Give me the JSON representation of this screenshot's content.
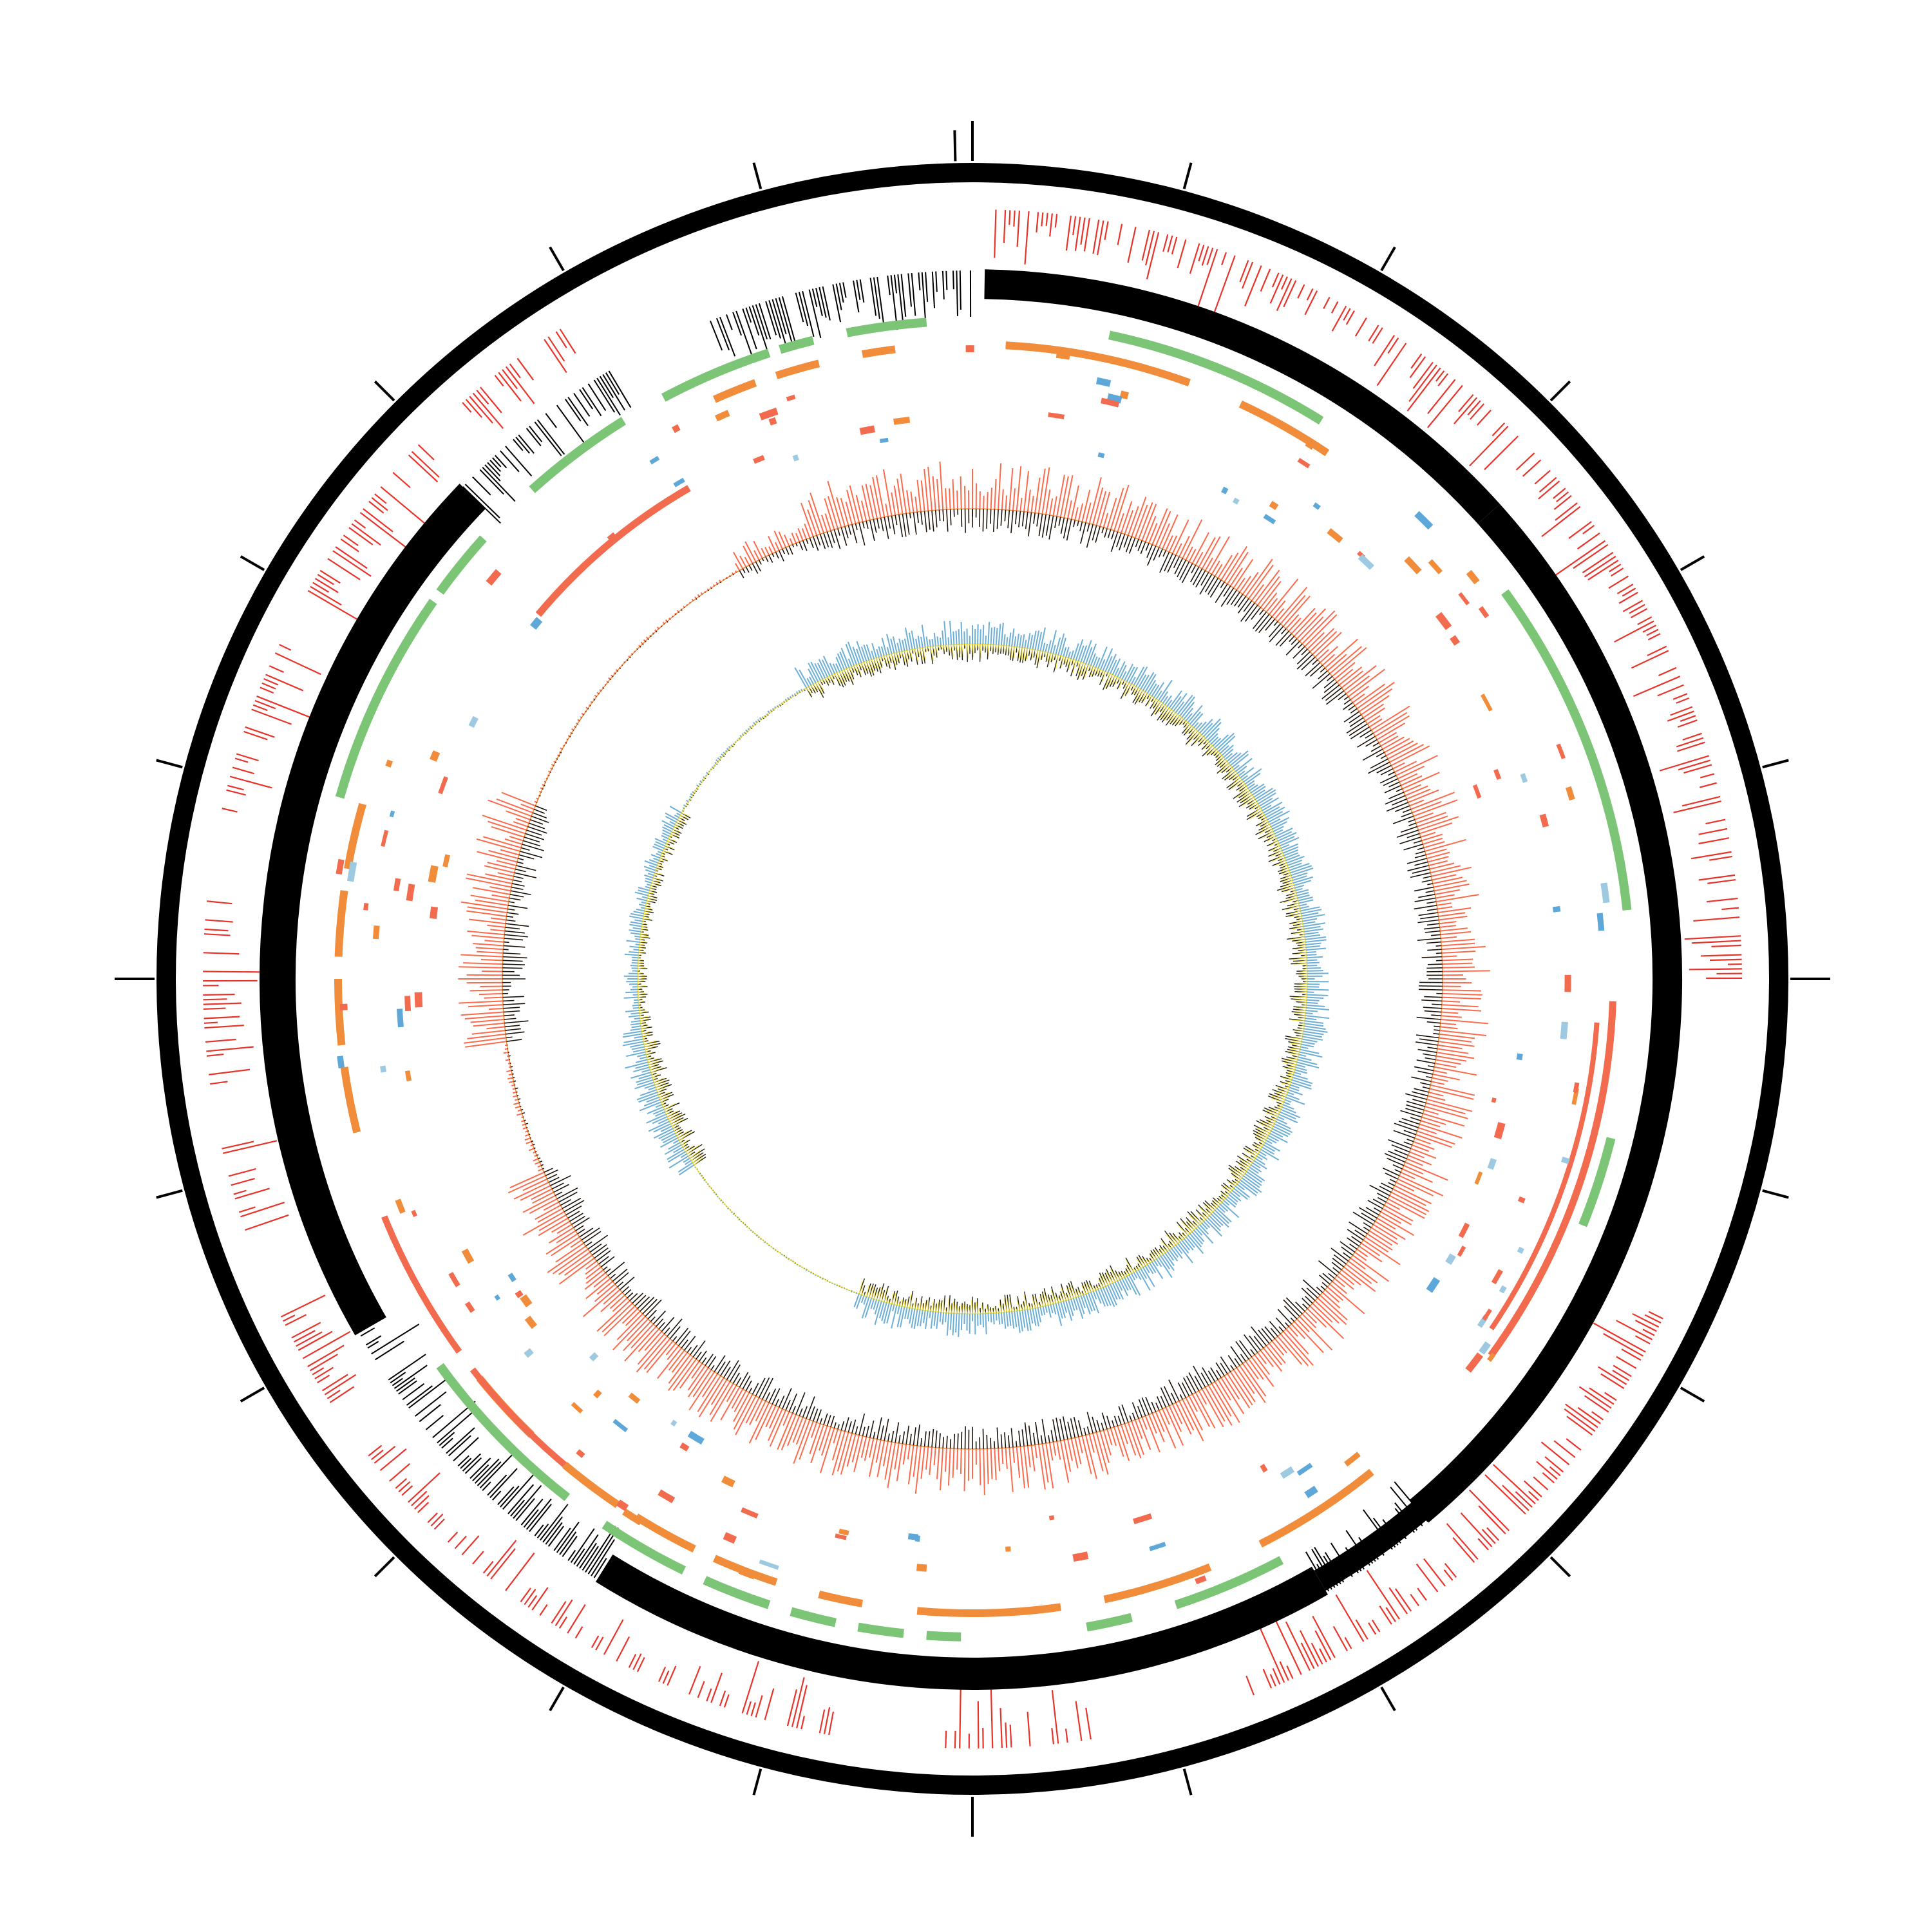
{
  "chart_data": {
    "type": "circular-genome-map",
    "title": "",
    "tick_count": 24,
    "colors": {
      "backbone": "#000000",
      "red_bars": "#e8332a",
      "green_arcs": "#7cc576",
      "orange_arcs": "#f08c3a",
      "salmon_arcs": "#f26b4e",
      "blue_marks": "#5da8d8",
      "lightblue_marks": "#9ecae1",
      "gc_skew_outer": "#fb6a4a",
      "gc_skew_inner": "#f0913a",
      "gc_content_outer": "#6baed6",
      "gc_content_inner": "#ffe84a"
    },
    "tracks": [
      {
        "name": "",
        "kind": "ticks"
      },
      {
        "name": "",
        "kind": "outer-ring"
      },
      {
        "name": "",
        "kind": "red-bars",
        "segments": [
          [
            1,
            90
          ],
          [
            116,
            160
          ],
          [
            170,
            182
          ],
          [
            190,
            232
          ],
          [
            236,
            244
          ],
          [
            250,
            258
          ],
          [
            262,
            276
          ],
          [
            282,
            296
          ],
          [
            300,
            314
          ],
          [
            318,
            328
          ]
        ]
      },
      {
        "name": "",
        "kind": "black-band",
        "segments": [
          [
            0,
            48
          ],
          [
            48,
            140
          ],
          [
            140,
            150
          ],
          [
            150,
            212
          ],
          [
            212,
            226
          ],
          [
            226,
            240
          ],
          [
            240,
            314
          ],
          [
            314,
            338
          ],
          [
            338,
            360
          ]
        ]
      },
      {
        "name": "",
        "kind": "green-arcs",
        "segments": [
          [
            349,
            356
          ],
          [
            12,
            32
          ],
          [
            54,
            84
          ],
          [
            104,
            112
          ],
          [
            152,
            162
          ],
          [
            166,
            170
          ],
          [
            181,
            184
          ],
          [
            186,
            190
          ],
          [
            192,
            196
          ],
          [
            198,
            204
          ],
          [
            206,
            214
          ],
          [
            218,
            234
          ],
          [
            286,
            305
          ],
          [
            306,
            312
          ],
          [
            318,
            328
          ],
          [
            332,
            342
          ],
          [
            343,
            346
          ]
        ]
      },
      {
        "name": "",
        "kind": "orange-arcs",
        "segments": [
          [
            3,
            20
          ],
          [
            25,
            34
          ],
          [
            141,
            153
          ],
          [
            158,
            168
          ],
          [
            172,
            185
          ],
          [
            190,
            194
          ],
          [
            198,
            204
          ],
          [
            206,
            212
          ],
          [
            214,
            220
          ],
          [
            224,
            231
          ],
          [
            256,
            262
          ],
          [
            264,
            270
          ],
          [
            272,
            278
          ],
          [
            280,
            286
          ],
          [
            336,
            340
          ],
          [
            342,
            346
          ],
          [
            350,
            353
          ]
        ]
      },
      {
        "name": "",
        "kind": "salmon-arcs",
        "segments": [
          [
            92,
            126
          ],
          [
            94,
            124
          ],
          [
            220,
            232
          ],
          [
            234,
            248
          ],
          [
            310,
            330
          ]
        ]
      },
      {
        "name": "",
        "kind": "gc-skew"
      },
      {
        "name": "",
        "kind": "gc-content"
      }
    ]
  }
}
